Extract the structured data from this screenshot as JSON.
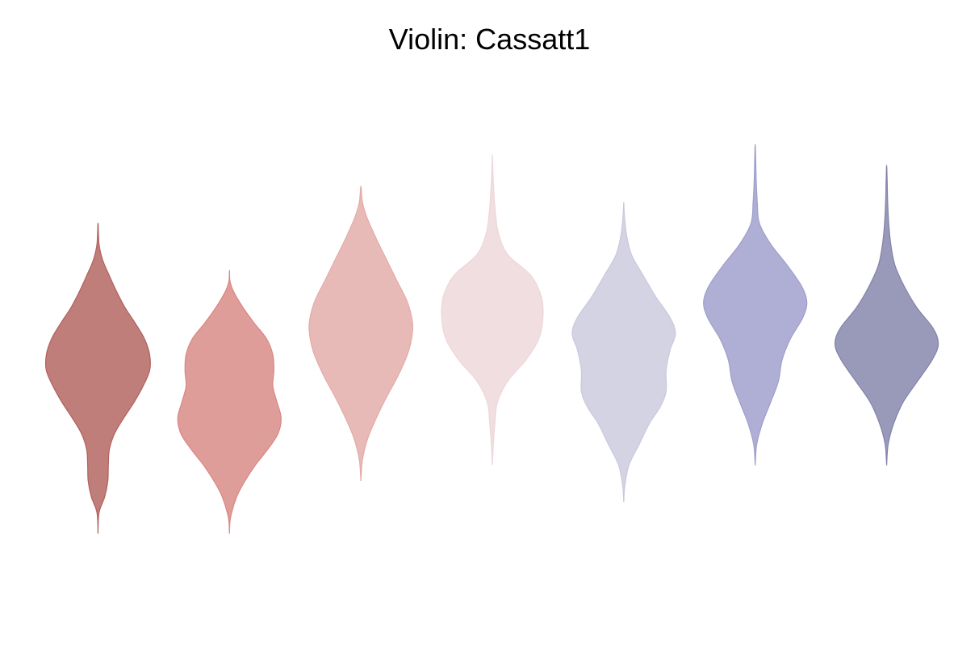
{
  "chart_data": {
    "type": "violin",
    "title": "Violin: Cassatt1",
    "xlabel": "",
    "ylabel": "",
    "grid": false,
    "axes_visible": false,
    "ylim": [
      -4.6,
      4.6
    ],
    "palette": "Cassatt1",
    "series": [
      {
        "color": "#b1615c",
        "profile": [
          [
            -3.7,
            0.0
          ],
          [
            -3.3,
            0.02
          ],
          [
            -3.0,
            0.13
          ],
          [
            -2.7,
            0.19
          ],
          [
            -2.4,
            0.2
          ],
          [
            -2.1,
            0.22
          ],
          [
            -1.8,
            0.32
          ],
          [
            -1.5,
            0.5
          ],
          [
            -1.2,
            0.7
          ],
          [
            -0.9,
            0.87
          ],
          [
            -0.6,
            1.0
          ],
          [
            -0.3,
            1.0
          ],
          [
            0.0,
            0.9
          ],
          [
            0.3,
            0.72
          ],
          [
            0.6,
            0.52
          ],
          [
            0.9,
            0.36
          ],
          [
            1.2,
            0.22
          ],
          [
            1.5,
            0.09
          ],
          [
            1.8,
            0.02
          ],
          [
            2.2,
            0.0
          ]
        ]
      },
      {
        "color": "#d88782",
        "profile": [
          [
            -3.7,
            0.0
          ],
          [
            -3.4,
            0.02
          ],
          [
            -3.0,
            0.14
          ],
          [
            -2.7,
            0.3
          ],
          [
            -2.4,
            0.5
          ],
          [
            -2.1,
            0.74
          ],
          [
            -1.8,
            0.94
          ],
          [
            -1.5,
            1.0
          ],
          [
            -1.2,
            0.92
          ],
          [
            -0.9,
            0.84
          ],
          [
            -0.6,
            0.86
          ],
          [
            -0.3,
            0.84
          ],
          [
            0.0,
            0.72
          ],
          [
            0.3,
            0.48
          ],
          [
            0.6,
            0.26
          ],
          [
            0.9,
            0.08
          ],
          [
            1.1,
            0.01
          ],
          [
            1.3,
            0.0
          ]
        ]
      },
      {
        "color": "#e3aba7",
        "profile": [
          [
            -2.7,
            0.0
          ],
          [
            -2.3,
            0.03
          ],
          [
            -1.9,
            0.13
          ],
          [
            -1.5,
            0.3
          ],
          [
            -1.1,
            0.5
          ],
          [
            -0.7,
            0.72
          ],
          [
            -0.3,
            0.9
          ],
          [
            0.0,
            0.98
          ],
          [
            0.3,
            1.0
          ],
          [
            0.7,
            0.9
          ],
          [
            1.1,
            0.7
          ],
          [
            1.5,
            0.5
          ],
          [
            1.9,
            0.3
          ],
          [
            2.3,
            0.12
          ],
          [
            2.6,
            0.03
          ],
          [
            2.9,
            0.0
          ]
        ]
      },
      {
        "color": "#edd7d9",
        "profile": [
          [
            -2.4,
            0.0
          ],
          [
            -2.0,
            0.02
          ],
          [
            -1.6,
            0.05
          ],
          [
            -1.2,
            0.1
          ],
          [
            -0.8,
            0.3
          ],
          [
            -0.4,
            0.65
          ],
          [
            0.0,
            0.9
          ],
          [
            0.4,
            0.98
          ],
          [
            0.8,
            0.95
          ],
          [
            1.2,
            0.75
          ],
          [
            1.6,
            0.3
          ],
          [
            2.0,
            0.12
          ],
          [
            2.4,
            0.06
          ],
          [
            2.8,
            0.03
          ],
          [
            3.2,
            0.01
          ],
          [
            3.5,
            0.0
          ]
        ]
      },
      {
        "color": "#c9c9dd",
        "profile": [
          [
            -3.1,
            0.0
          ],
          [
            -2.8,
            0.02
          ],
          [
            -2.4,
            0.1
          ],
          [
            -2.0,
            0.3
          ],
          [
            -1.6,
            0.5
          ],
          [
            -1.3,
            0.7
          ],
          [
            -1.0,
            0.82
          ],
          [
            -0.6,
            0.82
          ],
          [
            -0.2,
            0.9
          ],
          [
            0.1,
            1.0
          ],
          [
            0.4,
            0.9
          ],
          [
            0.8,
            0.62
          ],
          [
            1.2,
            0.38
          ],
          [
            1.6,
            0.15
          ],
          [
            2.0,
            0.05
          ],
          [
            2.4,
            0.01
          ],
          [
            2.6,
            0.0
          ]
        ]
      },
      {
        "color": "#9e9ecc",
        "profile": [
          [
            -2.4,
            0.0
          ],
          [
            -2.0,
            0.03
          ],
          [
            -1.6,
            0.14
          ],
          [
            -1.2,
            0.3
          ],
          [
            -0.8,
            0.45
          ],
          [
            -0.4,
            0.52
          ],
          [
            0.0,
            0.68
          ],
          [
            0.4,
            0.92
          ],
          [
            0.7,
            1.0
          ],
          [
            1.0,
            0.9
          ],
          [
            1.4,
            0.62
          ],
          [
            1.8,
            0.3
          ],
          [
            2.2,
            0.08
          ],
          [
            2.6,
            0.04
          ],
          [
            3.0,
            0.02
          ],
          [
            3.4,
            0.01
          ],
          [
            3.7,
            0.0
          ]
        ]
      },
      {
        "color": "#8282aa",
        "profile": [
          [
            -2.4,
            0.0
          ],
          [
            -2.0,
            0.03
          ],
          [
            -1.6,
            0.14
          ],
          [
            -1.2,
            0.32
          ],
          [
            -0.8,
            0.6
          ],
          [
            -0.4,
            0.88
          ],
          [
            -0.1,
            1.0
          ],
          [
            0.2,
            0.9
          ],
          [
            0.6,
            0.58
          ],
          [
            1.0,
            0.34
          ],
          [
            1.4,
            0.16
          ],
          [
            1.8,
            0.08
          ],
          [
            2.2,
            0.04
          ],
          [
            2.6,
            0.02
          ],
          [
            3.0,
            0.01
          ],
          [
            3.3,
            0.0
          ]
        ]
      }
    ]
  }
}
